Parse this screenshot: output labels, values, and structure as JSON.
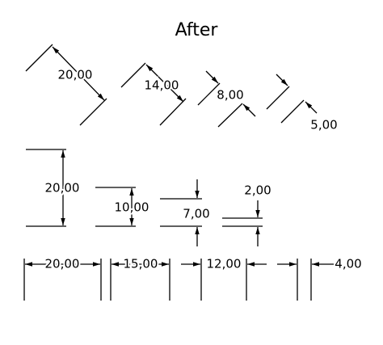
{
  "title": "After",
  "diagonal": [
    "20,00",
    "14,00",
    "8,00",
    "5,00"
  ],
  "vertical": [
    "20,00",
    "10,00",
    "7,00",
    "2,00"
  ],
  "horizontal": [
    "20,00",
    "15,00",
    "12,00",
    "4,00"
  ]
}
